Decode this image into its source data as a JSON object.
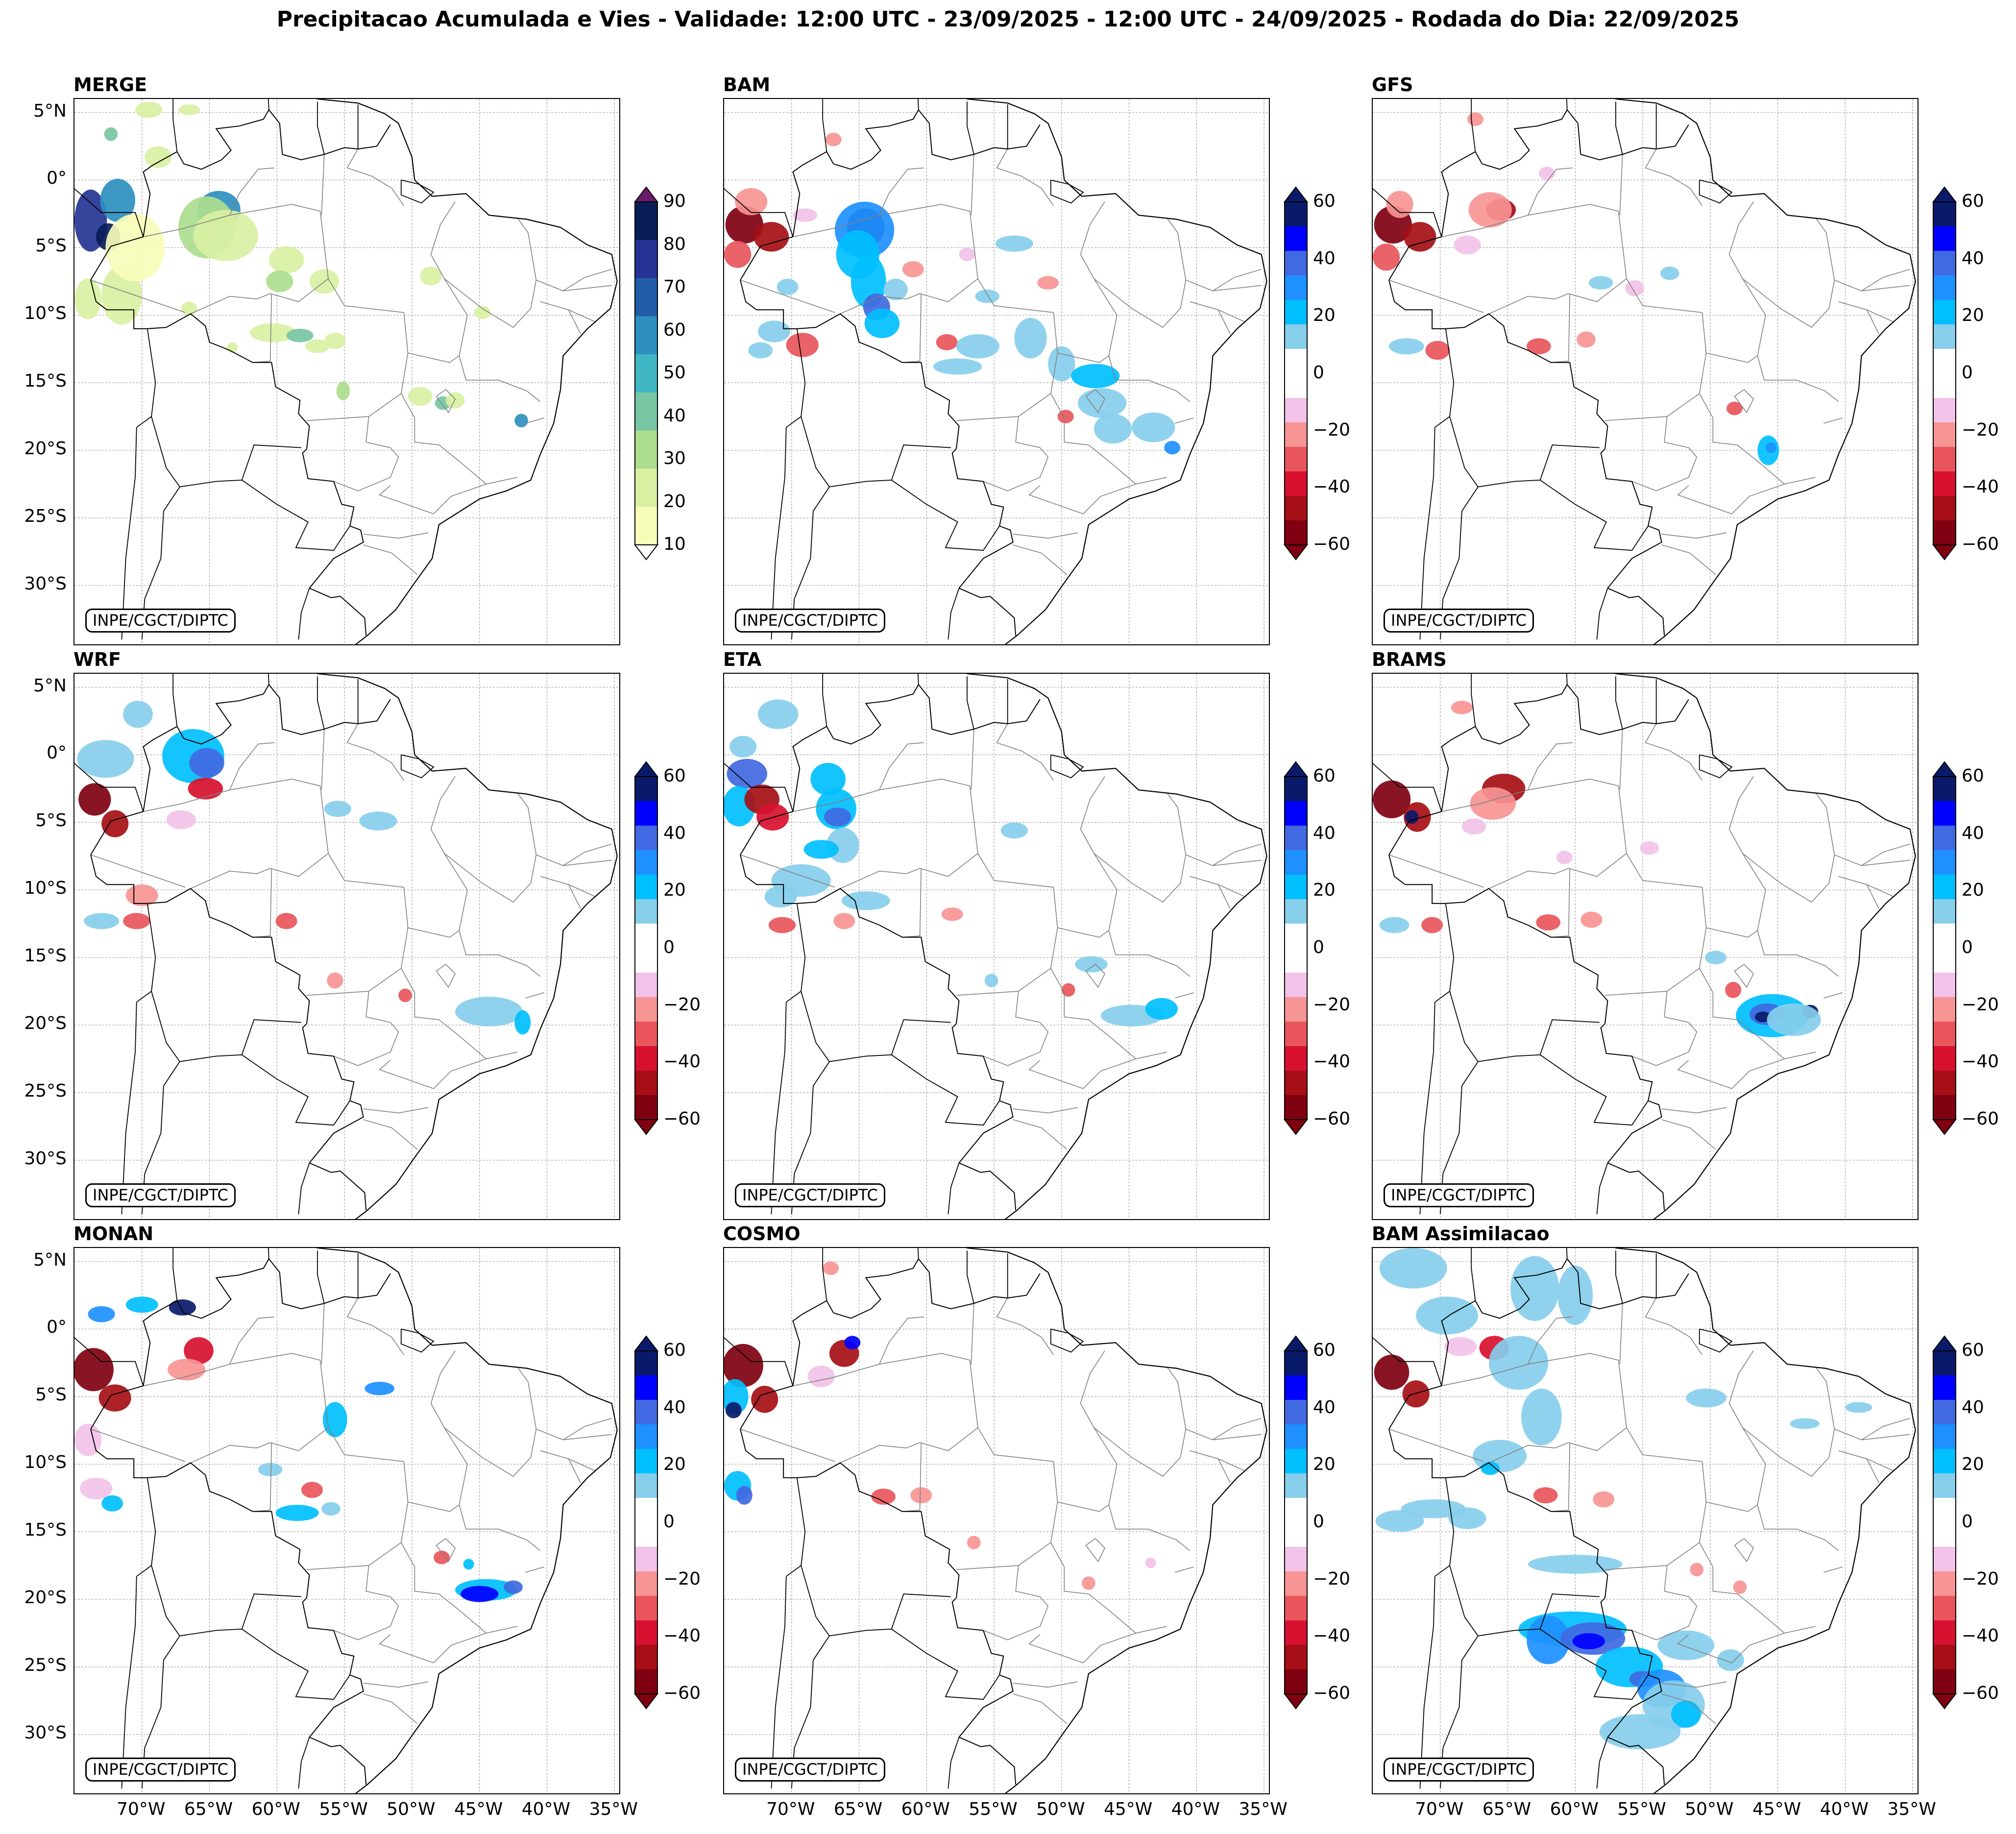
{
  "title": "Precipitacao Acumulada e Vies - Validade: 12:00 UTC - 23/09/2025 - 12:00 UTC - 24/09/2025 - Rodada do Dia: 22/09/2025",
  "credit": "INPE/CGCT/DIPTC",
  "lat_labels": [
    "5°N",
    "0°",
    "5°S",
    "10°S",
    "15°S",
    "20°S",
    "25°S",
    "30°S"
  ],
  "lon_labels": [
    "70°W",
    "65°W",
    "60°W",
    "55°W",
    "50°W",
    "45°W",
    "40°W",
    "35°W"
  ],
  "colors": {
    "country_border": "#000000",
    "state_border": "#808080",
    "grid": "#b0b0b0",
    "merge_scale": [
      "#f7fcb9",
      "#d9f0a3",
      "#addd8e",
      "#78c6a3",
      "#41b6c4",
      "#2c8fbf",
      "#225ea8",
      "#253494",
      "#081d58"
    ],
    "bias_scale_neg": [
      "#7f0010",
      "#a50f15",
      "#d7102f",
      "#e8565b",
      "#f79494",
      "#f2c2e8"
    ],
    "bias_scale_pos": [
      "#87ceeb",
      "#00bfff",
      "#1e90ff",
      "#4169e1",
      "#0000ff",
      "#0a1a6b"
    ]
  },
  "panels": [
    {
      "id": "merge",
      "title": "MERGE",
      "type": "precip",
      "ticks": [
        "90",
        "80",
        "70",
        "60",
        "50",
        "40",
        "30",
        "20",
        "10"
      ]
    },
    {
      "id": "bam",
      "title": "BAM",
      "type": "bias",
      "ticks": [
        "60",
        "40",
        "20",
        "0",
        "−20",
        "−40",
        "−60"
      ]
    },
    {
      "id": "gfs",
      "title": "GFS",
      "type": "bias",
      "ticks": [
        "60",
        "40",
        "20",
        "0",
        "−20",
        "−40",
        "−60"
      ]
    },
    {
      "id": "wrf",
      "title": "WRF",
      "type": "bias",
      "ticks": [
        "60",
        "40",
        "20",
        "0",
        "−20",
        "−40",
        "−60"
      ]
    },
    {
      "id": "eta",
      "title": "ETA",
      "type": "bias",
      "ticks": [
        "60",
        "40",
        "20",
        "0",
        "−20",
        "−40",
        "−60"
      ]
    },
    {
      "id": "brams",
      "title": "BRAMS",
      "type": "bias",
      "ticks": [
        "60",
        "40",
        "20",
        "0",
        "−20",
        "−40",
        "−60"
      ]
    },
    {
      "id": "monan",
      "title": "MONAN",
      "type": "bias",
      "ticks": [
        "60",
        "40",
        "20",
        "0",
        "−20",
        "−40",
        "−60"
      ]
    },
    {
      "id": "cosmo",
      "title": "COSMO",
      "type": "bias",
      "ticks": [
        "60",
        "40",
        "20",
        "0",
        "−20",
        "−40",
        "−60"
      ]
    },
    {
      "id": "bamassim",
      "title": "BAM Assimilacao",
      "type": "bias",
      "ticks": [
        "60",
        "40",
        "20",
        "0",
        "−20",
        "−40",
        "−60"
      ]
    }
  ]
}
